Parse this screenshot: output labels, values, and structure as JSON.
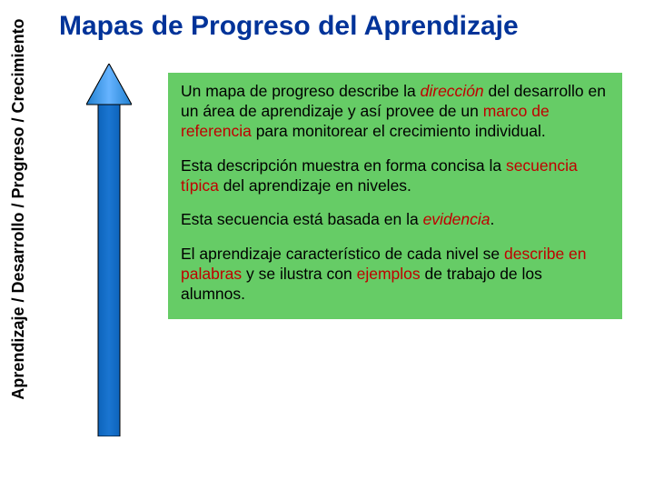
{
  "title": {
    "text": "Mapas de Progreso del Aprendizaje",
    "color": "#003399",
    "fontsize": 30
  },
  "vertical_label": {
    "text": "Aprendizaje / Desarrollo / Progreso / Crecimiento",
    "color": "#000000",
    "fontsize": 18
  },
  "arrow": {
    "shaft_color": "#0066cc",
    "head_color": "#3399ff",
    "border_color": "#000000",
    "shaft_width": 28,
    "head_width": 50,
    "head_height": 45,
    "total_height": 410
  },
  "content_box": {
    "background_color": "#66cc66",
    "paragraphs": [
      {
        "parts": [
          {
            "text": "Un mapa de progreso describe la ",
            "style": "normal"
          },
          {
            "text": "dirección",
            "style": "red-italic"
          },
          {
            "text": " del desarrollo en un área de aprendizaje y así provee de un ",
            "style": "normal"
          },
          {
            "text": "marco de referencia",
            "style": "red"
          },
          {
            "text": " para monitorear el crecimiento individual.",
            "style": "normal"
          }
        ]
      },
      {
        "parts": [
          {
            "text": "Esta descripción muestra en forma concisa la ",
            "style": "normal"
          },
          {
            "text": "secuencia típica",
            "style": "red"
          },
          {
            "text": " del aprendizaje en niveles.",
            "style": "normal"
          }
        ]
      },
      {
        "parts": [
          {
            "text": "Esta secuencia está basada en la ",
            "style": "normal"
          },
          {
            "text": "evidencia",
            "style": "red-italic"
          },
          {
            "text": ".",
            "style": "normal"
          }
        ]
      },
      {
        "parts": [
          {
            "text": "El aprendizaje característico de cada nivel se ",
            "style": "normal"
          },
          {
            "text": "describe en palabras",
            "style": "red"
          },
          {
            "text": " y se ilustra con  ",
            "style": "normal"
          },
          {
            "text": "ejemplos",
            "style": "red"
          },
          {
            "text": " de trabajo de los alumnos.",
            "style": "normal"
          }
        ]
      }
    ]
  }
}
